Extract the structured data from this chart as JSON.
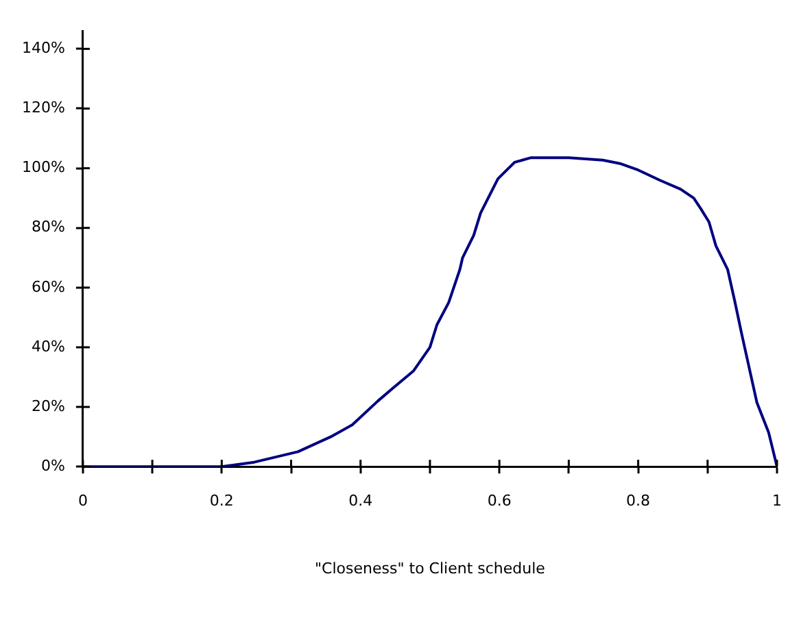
{
  "chart_data": {
    "type": "line",
    "xlabel": "\"Closeness\" to Client schedule",
    "x": [
      0,
      0.1,
      0.2,
      0.247,
      0.31,
      0.357,
      0.388,
      0.425,
      0.445,
      0.476,
      0.5,
      0.51,
      0.527,
      0.543,
      0.547,
      0.563,
      0.573,
      0.598,
      0.622,
      0.645,
      0.7,
      0.749,
      0.775,
      0.8,
      0.831,
      0.861,
      0.88,
      0.89,
      0.902,
      0.912,
      0.929,
      0.939,
      0.949,
      0.971,
      0.988,
      1
    ],
    "series": [
      {
        "color": "#000080",
        "values": [
          0,
          0,
          0,
          1.5,
          5,
          10,
          14,
          22,
          26,
          32,
          40,
          47.5,
          55,
          66,
          70,
          77.5,
          85,
          96.5,
          102,
          103.5,
          103.5,
          102.7,
          101.5,
          99.4,
          96,
          93,
          90,
          86.5,
          82,
          74,
          66,
          55.6,
          44.6,
          21.5,
          11.4,
          0
        ]
      }
    ],
    "xlim": [
      0,
      1
    ],
    "xticks": [
      0,
      {
        "value": 0.1,
        "label": null
      },
      0.2,
      {
        "value": 0.3,
        "label": null
      },
      0.4,
      {
        "value": 0.5,
        "label": null
      },
      0.6,
      {
        "value": 0.7,
        "label": null
      },
      0.8,
      {
        "value": 0.9,
        "label": null
      },
      1
    ],
    "ylim": [
      0,
      146
    ],
    "yticks": [
      {
        "value": 0,
        "label": "0%"
      },
      {
        "value": 20,
        "label": "20%"
      },
      {
        "value": 40,
        "label": "40%"
      },
      {
        "value": 60,
        "label": "60%"
      },
      {
        "value": 80,
        "label": "80%"
      },
      {
        "value": 100,
        "label": "100%"
      },
      {
        "value": 120,
        "label": "120%"
      },
      {
        "value": 140,
        "label": "140%"
      }
    ],
    "grid": false,
    "legend": false,
    "marker": "none",
    "line_style": "solid"
  }
}
